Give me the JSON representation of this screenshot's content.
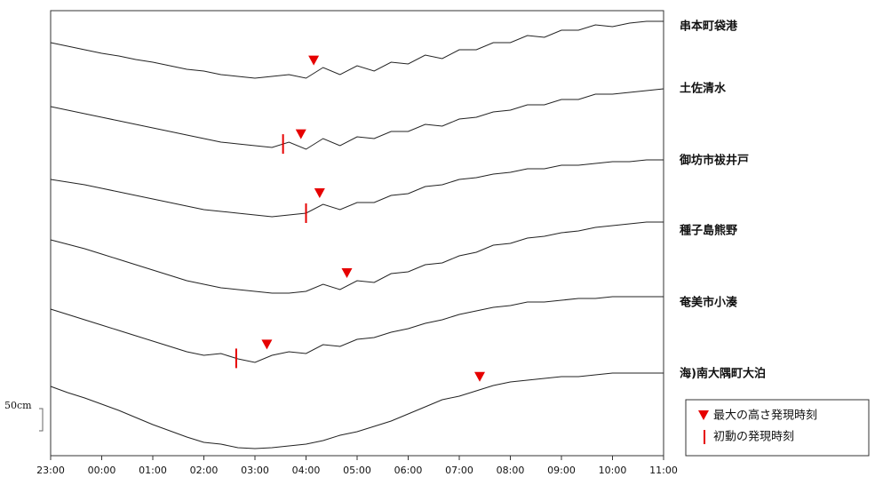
{
  "chart_data": {
    "type": "line",
    "x": [
      0,
      20,
      40,
      60,
      80,
      100,
      120,
      140,
      160,
      180,
      200,
      220,
      240,
      260,
      280,
      300,
      320,
      340,
      360,
      380,
      400,
      420,
      440,
      460,
      480,
      500,
      520,
      540,
      560,
      580,
      600,
      620,
      640,
      660,
      680,
      700,
      720
    ],
    "xlim": [
      0,
      720
    ],
    "xticks": [
      {
        "value": 0,
        "label": "23:00"
      },
      {
        "value": 60,
        "label": "00:00"
      },
      {
        "value": 120,
        "label": "01:00"
      },
      {
        "value": 180,
        "label": "02:00"
      },
      {
        "value": 240,
        "label": "03:00"
      },
      {
        "value": 300,
        "label": "04:00"
      },
      {
        "value": 360,
        "label": "05:00"
      },
      {
        "value": 420,
        "label": "06:00"
      },
      {
        "value": 480,
        "label": "07:00"
      },
      {
        "value": 540,
        "label": "08:00"
      },
      {
        "value": 600,
        "label": "09:00"
      },
      {
        "value": 660,
        "label": "10:00"
      },
      {
        "value": 720,
        "label": "11:00"
      }
    ],
    "scale_bar": {
      "value": 50,
      "label": "50cm"
    },
    "marker_color": "#e60000",
    "legend": {
      "max_label": "最大の高さ発現時刻",
      "first_label": "初動の発現時刻"
    },
    "series": [
      {
        "name": "串本町袋港",
        "color": "#222",
        "max_time": 309,
        "first_time": null,
        "values": [
          -36,
          -44,
          -52,
          -60,
          -66,
          -74,
          -80,
          -88,
          -96,
          -100,
          -108,
          -112,
          -116,
          -112,
          -108,
          -116,
          -92,
          -108,
          -88,
          -100,
          -80,
          -84,
          -64,
          -72,
          -52,
          -52,
          -36,
          -36,
          -20,
          -24,
          -8,
          -8,
          4,
          0,
          8,
          12,
          12
        ]
      },
      {
        "name": "土佐清水",
        "color": "#222",
        "max_time": 294,
        "first_time": 273,
        "values": [
          -40,
          -48,
          -56,
          -64,
          -72,
          -80,
          -88,
          -96,
          -104,
          -112,
          -120,
          -124,
          -128,
          -132,
          -120,
          -136,
          -112,
          -128,
          -108,
          -112,
          -96,
          -96,
          -80,
          -84,
          -68,
          -64,
          -52,
          -48,
          -36,
          -36,
          -24,
          -24,
          -12,
          -12,
          -8,
          -4,
          0
        ]
      },
      {
        "name": "御坊市祓井戸",
        "color": "#222",
        "max_time": 316,
        "first_time": 300,
        "values": [
          -42,
          -48,
          -54,
          -62,
          -70,
          -78,
          -86,
          -94,
          -102,
          -110,
          -114,
          -118,
          -122,
          -126,
          -122,
          -118,
          -98,
          -110,
          -94,
          -94,
          -78,
          -74,
          -58,
          -54,
          -42,
          -38,
          -30,
          -26,
          -18,
          -18,
          -10,
          -10,
          -6,
          -2,
          -2,
          2,
          2
        ]
      },
      {
        "name": "種子島熊野",
        "color": "#222",
        "max_time": 348,
        "first_time": null,
        "values": [
          -20,
          -30,
          -40,
          -52,
          -64,
          -76,
          -88,
          -100,
          -112,
          -120,
          -128,
          -132,
          -136,
          -140,
          -140,
          -136,
          -120,
          -132,
          -112,
          -116,
          -96,
          -92,
          -76,
          -72,
          -56,
          -48,
          -32,
          -28,
          -16,
          -12,
          -4,
          0,
          8,
          12,
          16,
          20,
          20
        ]
      },
      {
        "name": "奄美市小湊",
        "color": "#222",
        "max_time": 254,
        "first_time": 218,
        "values": [
          -14,
          -26,
          -38,
          -50,
          -62,
          -74,
          -86,
          -98,
          -110,
          -118,
          -114,
          -126,
          -134,
          -118,
          -110,
          -114,
          -94,
          -98,
          -82,
          -78,
          -66,
          -58,
          -46,
          -38,
          -26,
          -18,
          -10,
          -6,
          2,
          2,
          6,
          10,
          10,
          14,
          14,
          14,
          14
        ]
      },
      {
        "name": "海)南大隅町大泊",
        "color": "#222",
        "max_time": 504,
        "first_time": null,
        "values": [
          -28,
          -42,
          -54,
          -68,
          -82,
          -98,
          -114,
          -128,
          -142,
          -154,
          -158,
          -166,
          -168,
          -166,
          -162,
          -158,
          -150,
          -138,
          -130,
          -118,
          -106,
          -90,
          -74,
          -58,
          -50,
          -38,
          -26,
          -18,
          -14,
          -10,
          -6,
          -6,
          -2,
          2,
          2,
          2,
          2
        ]
      }
    ]
  }
}
